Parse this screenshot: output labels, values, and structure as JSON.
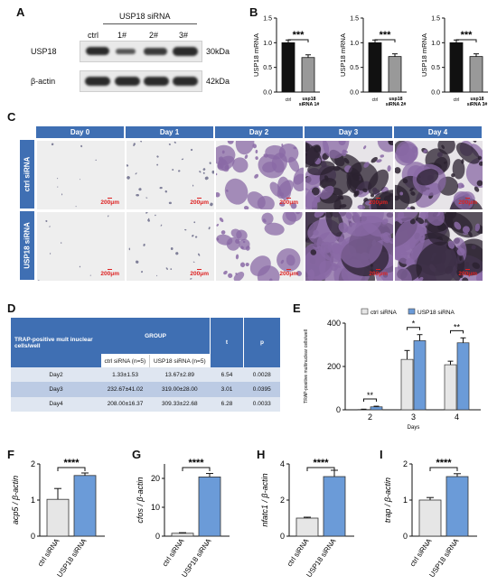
{
  "panels": {
    "A": "A",
    "B": "B",
    "C": "C",
    "D": "D",
    "E": "E",
    "F": "F",
    "G": "G",
    "H": "H",
    "I": "I"
  },
  "blot": {
    "group_label": "USP18 siRNA",
    "lanes": [
      "ctrl",
      "1#",
      "2#",
      "3#"
    ],
    "rows": [
      {
        "protein": "USP18",
        "size": "30kDa"
      },
      {
        "protein": "β-actin",
        "size": "42kDa"
      }
    ]
  },
  "mrna": [
    {
      "ylabel": "USP18 mRNA",
      "sig": "***",
      "categories": [
        "ctrl",
        "usp18 siRNA 1#"
      ],
      "values": [
        1.0,
        0.7
      ],
      "ylim": [
        0,
        1.5
      ],
      "yticks": [
        "0.0",
        "0.5",
        "1.0",
        "1.5"
      ]
    },
    {
      "ylabel": "USP18 mRNA",
      "sig": "***",
      "categories": [
        "ctrl",
        "usp18 siRNA 2#"
      ],
      "values": [
        1.0,
        0.72
      ],
      "ylim": [
        0,
        1.5
      ],
      "yticks": [
        "0.0",
        "0.5",
        "1.0",
        "1.5"
      ]
    },
    {
      "ylabel": "USP18 mRNA",
      "sig": "***",
      "categories": [
        "ctrl",
        "usp18 siRNA 3#"
      ],
      "values": [
        1.0,
        0.72
      ],
      "ylim": [
        0,
        1.5
      ],
      "yticks": [
        "0.0",
        "0.5",
        "1.0",
        "1.5"
      ]
    }
  ],
  "micro": {
    "days": [
      "Day 0",
      "Day 1",
      "Day 2",
      "Day 3",
      "Day 4"
    ],
    "rows": [
      "ctrl siRNA",
      "USP18 siRNA"
    ],
    "scale": "200μm"
  },
  "table": {
    "corner": "TRAP-positive mult inuclear cells/well",
    "group": "GROUP",
    "t": "t",
    "p": "p",
    "col1": "ctrl siRNA (n=5)",
    "col2": "USP18 siRNA (n=5)",
    "rows": [
      {
        "day": "Day2",
        "ctrl": "1.33±1.53",
        "usp": "13.67±2.89",
        "t": "6.54",
        "p": "0.0028"
      },
      {
        "day": "Day3",
        "ctrl": "232.67±41.02",
        "usp": "319.00±28.00",
        "t": "3.01",
        "p": "0.0395"
      },
      {
        "day": "Day4",
        "ctrl": "208.00±16.37",
        "usp": "309.33±22.68",
        "t": "6.28",
        "p": "0.0033"
      }
    ]
  },
  "chart_data": [
    {
      "type": "bar",
      "panel": "B1",
      "categories": [
        "ctrl",
        "usp18 siRNA 1#"
      ],
      "values": [
        1.0,
        0.7
      ],
      "ylabel": "USP18 mRNA",
      "ylim": [
        0,
        1.5
      ]
    },
    {
      "type": "bar",
      "panel": "B2",
      "categories": [
        "ctrl",
        "usp18 siRNA 2#"
      ],
      "values": [
        1.0,
        0.72
      ],
      "ylabel": "USP18 mRNA",
      "ylim": [
        0,
        1.5
      ]
    },
    {
      "type": "bar",
      "panel": "B3",
      "categories": [
        "ctrl",
        "usp18 siRNA 3#"
      ],
      "values": [
        1.0,
        0.72
      ],
      "ylabel": "USP18 mRNA",
      "ylim": [
        0,
        1.5
      ]
    },
    {
      "type": "bar",
      "panel": "E",
      "categories": [
        "2",
        "3",
        "4"
      ],
      "xlabel": "Days",
      "ylabel": "TRAP-positive multinuclear cells/well",
      "series": [
        {
          "name": "ctrl siRNA",
          "values": [
            1.33,
            232.67,
            208.0
          ],
          "err": [
            1.53,
            41.02,
            16.37
          ]
        },
        {
          "name": "USP18 siRNA",
          "values": [
            13.67,
            319.0,
            309.33
          ],
          "err": [
            2.89,
            28.0,
            22.68
          ]
        }
      ],
      "sig": [
        "**",
        "*",
        "**"
      ],
      "ylim": [
        0,
        400
      ],
      "yticks": [
        "0",
        "200",
        "400"
      ],
      "legend": "top"
    },
    {
      "type": "bar",
      "panel": "F",
      "categories": [
        "ctrl siRNA",
        "USP18 siRNA"
      ],
      "values": [
        1.02,
        1.68
      ],
      "err": [
        0.3,
        0.07
      ],
      "ylabel": "acp5 / β-actin",
      "ylim": [
        0,
        2
      ],
      "yticks": [
        "0",
        "1",
        "2"
      ],
      "sig": "****"
    },
    {
      "type": "bar",
      "panel": "G",
      "categories": [
        "ctrl siRNA",
        "USP18 siRNA"
      ],
      "values": [
        1.0,
        20.5
      ],
      "err": [
        0.2,
        1.2
      ],
      "ylabel": "cfos / β-actin",
      "ylim": [
        0,
        25
      ],
      "yticks": [
        "0",
        "10",
        "20"
      ],
      "sig": "****"
    },
    {
      "type": "bar",
      "panel": "H",
      "categories": [
        "ctrl siRNA",
        "USP18 siRNA"
      ],
      "values": [
        1.0,
        3.3
      ],
      "err": [
        0.05,
        0.35
      ],
      "ylabel": "nfatc1 / β-actin",
      "ylim": [
        0,
        4
      ],
      "yticks": [
        "0",
        "2",
        "4"
      ],
      "sig": "****"
    },
    {
      "type": "bar",
      "panel": "I",
      "categories": [
        "ctrl siRNA",
        "USP18 siRNA"
      ],
      "values": [
        1.0,
        1.65
      ],
      "err": [
        0.07,
        0.08
      ],
      "ylabel": "trap / β-actin",
      "ylim": [
        0,
        2
      ],
      "yticks": [
        "0",
        "1",
        "2"
      ],
      "sig": "****"
    }
  ]
}
